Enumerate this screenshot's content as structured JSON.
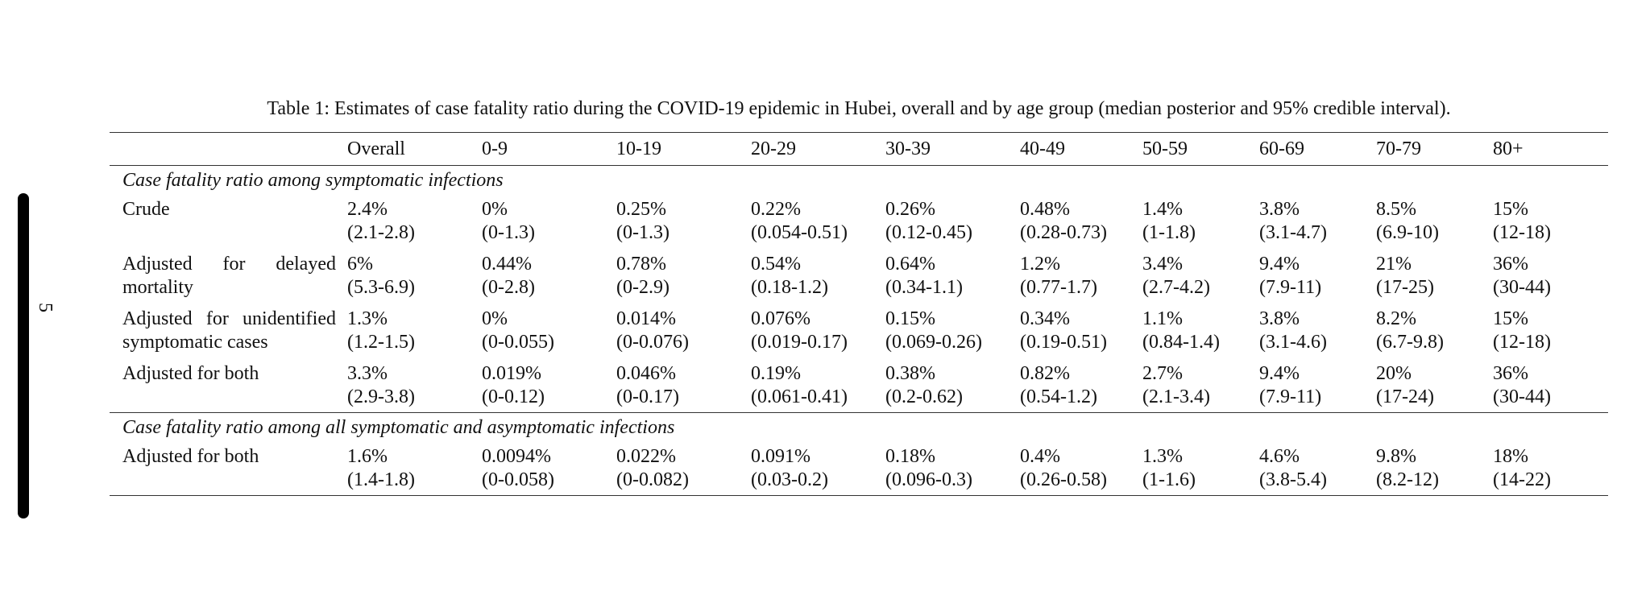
{
  "page": {
    "number": "5"
  },
  "caption": "Table 1: Estimates of case fatality ratio during the COVID-19 epidemic in Hubei, overall and by age group (median posterior and 95% credible interval).",
  "headers": [
    "",
    "Overall",
    "0-9",
    "10-19",
    "20-29",
    "30-39",
    "40-49",
    "50-59",
    "60-69",
    "70-79",
    "80+"
  ],
  "sections": [
    {
      "title": "Case fatality ratio among symptomatic infections",
      "rows": [
        {
          "label": "Crude",
          "cells": [
            {
              "value": "2.4%",
              "ci": "(2.1-2.8)"
            },
            {
              "value": "0%",
              "ci": "(0-1.3)"
            },
            {
              "value": "0.25%",
              "ci": "(0-1.3)"
            },
            {
              "value": "0.22%",
              "ci": "(0.054-0.51)"
            },
            {
              "value": "0.26%",
              "ci": "(0.12-0.45)"
            },
            {
              "value": "0.48%",
              "ci": "(0.28-0.73)"
            },
            {
              "value": "1.4%",
              "ci": "(1-1.8)"
            },
            {
              "value": "3.8%",
              "ci": "(3.1-4.7)"
            },
            {
              "value": "8.5%",
              "ci": "(6.9-10)"
            },
            {
              "value": "15%",
              "ci": "(12-18)"
            }
          ]
        },
        {
          "label": "Adjusted for delayed mortality",
          "cells": [
            {
              "value": "6%",
              "ci": "(5.3-6.9)"
            },
            {
              "value": "0.44%",
              "ci": "(0-2.8)"
            },
            {
              "value": "0.78%",
              "ci": "(0-2.9)"
            },
            {
              "value": "0.54%",
              "ci": "(0.18-1.2)"
            },
            {
              "value": "0.64%",
              "ci": "(0.34-1.1)"
            },
            {
              "value": "1.2%",
              "ci": "(0.77-1.7)"
            },
            {
              "value": "3.4%",
              "ci": "(2.7-4.2)"
            },
            {
              "value": "9.4%",
              "ci": "(7.9-11)"
            },
            {
              "value": "21%",
              "ci": "(17-25)"
            },
            {
              "value": "36%",
              "ci": "(30-44)"
            }
          ]
        },
        {
          "label": "Adjusted for unidentified symptomatic cases",
          "cells": [
            {
              "value": "1.3%",
              "ci": "(1.2-1.5)"
            },
            {
              "value": "0%",
              "ci": "(0-0.055)"
            },
            {
              "value": "0.014%",
              "ci": "(0-0.076)"
            },
            {
              "value": "0.076%",
              "ci": "(0.019-0.17)"
            },
            {
              "value": "0.15%",
              "ci": "(0.069-0.26)"
            },
            {
              "value": "0.34%",
              "ci": "(0.19-0.51)"
            },
            {
              "value": "1.1%",
              "ci": "(0.84-1.4)"
            },
            {
              "value": "3.8%",
              "ci": "(3.1-4.6)"
            },
            {
              "value": "8.2%",
              "ci": "(6.7-9.8)"
            },
            {
              "value": "15%",
              "ci": "(12-18)"
            }
          ]
        },
        {
          "label": "Adjusted for both",
          "cells": [
            {
              "value": "3.3%",
              "ci": "(2.9-3.8)"
            },
            {
              "value": "0.019%",
              "ci": "(0-0.12)"
            },
            {
              "value": "0.046%",
              "ci": "(0-0.17)"
            },
            {
              "value": "0.19%",
              "ci": "(0.061-0.41)"
            },
            {
              "value": "0.38%",
              "ci": "(0.2-0.62)"
            },
            {
              "value": "0.82%",
              "ci": "(0.54-1.2)"
            },
            {
              "value": "2.7%",
              "ci": "(2.1-3.4)"
            },
            {
              "value": "9.4%",
              "ci": "(7.9-11)"
            },
            {
              "value": "20%",
              "ci": "(17-24)"
            },
            {
              "value": "36%",
              "ci": "(30-44)"
            }
          ]
        }
      ]
    },
    {
      "title": "Case fatality ratio among all symptomatic and asymptomatic infections",
      "rows": [
        {
          "label": "Adjusted for both",
          "cells": [
            {
              "value": "1.6%",
              "ci": "(1.4-1.8)"
            },
            {
              "value": "0.0094%",
              "ci": "(0-0.058)"
            },
            {
              "value": "0.022%",
              "ci": "(0-0.082)"
            },
            {
              "value": "0.091%",
              "ci": "(0.03-0.2)"
            },
            {
              "value": "0.18%",
              "ci": "(0.096-0.3)"
            },
            {
              "value": "0.4%",
              "ci": "(0.26-0.58)"
            },
            {
              "value": "1.3%",
              "ci": "(1-1.6)"
            },
            {
              "value": "4.6%",
              "ci": "(3.8-5.4)"
            },
            {
              "value": "9.8%",
              "ci": "(8.2-12)"
            },
            {
              "value": "18%",
              "ci": "(14-22)"
            }
          ]
        }
      ]
    }
  ]
}
